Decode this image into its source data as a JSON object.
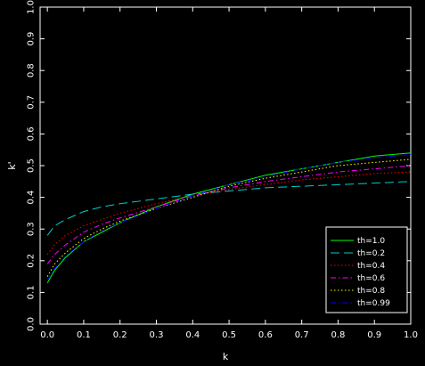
{
  "chart_data": {
    "type": "line",
    "title": "",
    "xlabel": "k",
    "ylabel": "k'",
    "xlim": [
      -0.02,
      1.0
    ],
    "ylim": [
      0.0,
      1.0
    ],
    "grid": false,
    "legend_position": "bottom-right",
    "xticks": [
      0.0,
      0.1,
      0.2,
      0.3,
      0.4,
      0.5,
      0.6,
      0.7,
      0.8,
      0.9,
      1.0
    ],
    "xtick_labels": [
      "0.0",
      "0.1",
      "0.2",
      "0.3",
      "0.4",
      "0.5",
      "0.6",
      "0.7",
      "0.8",
      "0.9",
      "1.0"
    ],
    "yticks": [
      0.0,
      0.1,
      0.2,
      0.3,
      0.4,
      0.5,
      0.6,
      0.7,
      0.8,
      0.9,
      1.0
    ],
    "ytick_labels": [
      "0.0",
      "0.1",
      "0.2",
      "0.3",
      "0.4",
      "0.5",
      "0.6",
      "0.7",
      "0.8",
      "0.9",
      "1.0"
    ],
    "x": [
      0.0,
      0.02,
      0.05,
      0.1,
      0.15,
      0.2,
      0.3,
      0.4,
      0.5,
      0.6,
      0.7,
      0.8,
      0.9,
      1.0
    ],
    "series": [
      {
        "name": "th=1.0",
        "color": "#00ff00",
        "dash": "solid",
        "values": [
          0.13,
          0.17,
          0.21,
          0.26,
          0.29,
          0.32,
          0.37,
          0.41,
          0.44,
          0.47,
          0.49,
          0.51,
          0.53,
          0.54
        ]
      },
      {
        "name": "th=0.2",
        "color": "#00cccc",
        "dash": "long-dash",
        "values": [
          0.28,
          0.31,
          0.33,
          0.355,
          0.37,
          0.38,
          0.395,
          0.41,
          0.42,
          0.43,
          0.435,
          0.44,
          0.445,
          0.45
        ]
      },
      {
        "name": "th=0.4",
        "color": "#ff0000",
        "dash": "dotted",
        "values": [
          0.22,
          0.25,
          0.28,
          0.31,
          0.33,
          0.35,
          0.38,
          0.405,
          0.425,
          0.44,
          0.455,
          0.465,
          0.475,
          0.48
        ]
      },
      {
        "name": "th=0.6",
        "color": "#ff00ff",
        "dash": "dash-dot",
        "values": [
          0.19,
          0.22,
          0.25,
          0.29,
          0.315,
          0.335,
          0.37,
          0.405,
          0.43,
          0.45,
          0.465,
          0.48,
          0.49,
          0.5
        ]
      },
      {
        "name": "th=0.8",
        "color": "#ffff00",
        "dash": "dotted",
        "values": [
          0.15,
          0.19,
          0.225,
          0.27,
          0.3,
          0.325,
          0.365,
          0.4,
          0.435,
          0.46,
          0.48,
          0.5,
          0.51,
          0.52
        ]
      },
      {
        "name": "th=0.99",
        "color": "#0000ff",
        "dash": "dash-dot",
        "values": [
          0.14,
          0.175,
          0.215,
          0.26,
          0.295,
          0.32,
          0.365,
          0.405,
          0.44,
          0.465,
          0.49,
          0.51,
          0.525,
          0.535
        ]
      }
    ]
  }
}
